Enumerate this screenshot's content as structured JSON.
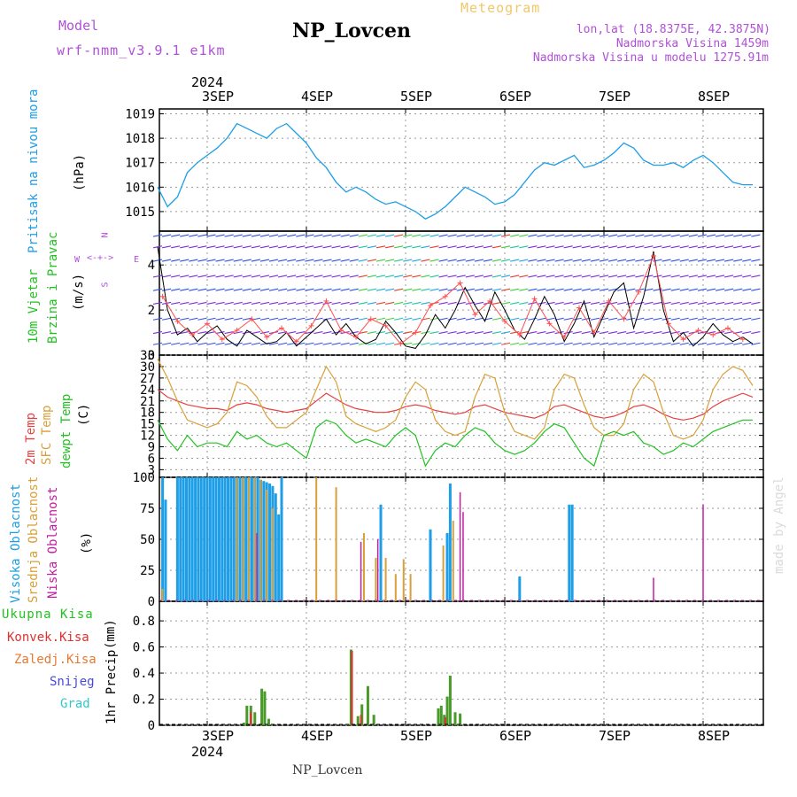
{
  "header": {
    "model_label": "Model",
    "model_name": "wrf-nmm_v3.9.1 e1km",
    "station": "NP_Lovcen",
    "product": "Meteogram",
    "coords": "lon,lat (18.8375E, 42.3875N)",
    "elevation": "Nadmorska Visina 1459m",
    "model_elevation": "Nadmorska Visina u modelu 1275.91m",
    "year": "2024",
    "footer_station": "NP_Lovcen",
    "watermark": "made by Angel"
  },
  "colors": {
    "pressure": "#1e9ee6",
    "wind_speed": "#000000",
    "gust": "#ff5050",
    "t2m": "#e64040",
    "tsfc": "#d8a038",
    "dewpoint": "#22c222",
    "high_cloud": "#1e9ee6",
    "mid_cloud": "#d8a038",
    "low_cloud": "#c21ea0",
    "total_precip": "#4a9a2a",
    "conv_precip": "#e03030",
    "freezing_precip": "#e87830",
    "snow": "#4848e0",
    "hail": "#30c8c8",
    "model_text": "#b050d8"
  },
  "chart_data": [
    {
      "type": "line",
      "name": "pressure",
      "ylabel": "Pritisak na nivou mora",
      "unit": "(hPa)",
      "x_tick_labels": [
        "3SEP",
        "4SEP",
        "5SEP",
        "6SEP",
        "7SEP",
        "8SEP"
      ],
      "x_range_days": [
        0,
        6
      ],
      "ylim": [
        1014.2,
        1019.2
      ],
      "yticks": [
        1015,
        1016,
        1017,
        1018,
        1019
      ],
      "grid": true,
      "x": [
        -0.5,
        -0.4,
        -0.3,
        -0.2,
        -0.1,
        0.0,
        0.1,
        0.2,
        0.3,
        0.4,
        0.5,
        0.6,
        0.7,
        0.8,
        0.9,
        1.0,
        1.1,
        1.2,
        1.3,
        1.4,
        1.5,
        1.6,
        1.7,
        1.8,
        1.9,
        2.0,
        2.1,
        2.2,
        2.3,
        2.4,
        2.5,
        2.6,
        2.7,
        2.8,
        2.9,
        3.0,
        3.1,
        3.2,
        3.3,
        3.4,
        3.5,
        3.6,
        3.7,
        3.8,
        3.9,
        4.0,
        4.1,
        4.2,
        4.3,
        4.4,
        4.5,
        4.6,
        4.7,
        4.8,
        4.9,
        5.0,
        5.1,
        5.2,
        5.3,
        5.4,
        5.5
      ],
      "y": [
        1016.0,
        1015.2,
        1015.6,
        1016.6,
        1017.0,
        1017.3,
        1017.6,
        1018.0,
        1018.6,
        1018.4,
        1018.2,
        1018.0,
        1018.4,
        1018.6,
        1018.2,
        1017.8,
        1017.2,
        1016.8,
        1016.2,
        1015.8,
        1016.0,
        1015.8,
        1015.5,
        1015.3,
        1015.4,
        1015.2,
        1015.0,
        1014.7,
        1014.9,
        1015.2,
        1015.6,
        1016.0,
        1015.8,
        1015.6,
        1015.3,
        1015.4,
        1015.7,
        1016.2,
        1016.7,
        1017.0,
        1016.9,
        1017.1,
        1017.3,
        1016.8,
        1016.9,
        1017.1,
        1017.4,
        1017.8,
        1017.6,
        1017.1,
        1016.9,
        1016.9,
        1017.0,
        1016.8,
        1017.1,
        1017.3,
        1017.0,
        1016.6,
        1016.2,
        1016.1,
        1016.1
      ]
    },
    {
      "type": "line",
      "name": "wind",
      "ylabel": "10m Vjetar Brzina i Pravac",
      "unit": "(m/s)",
      "compass": {
        "north": "N",
        "south": "S",
        "east": "E",
        "west": "W"
      },
      "ylim": [
        0,
        5.5
      ],
      "yticks": [
        0,
        2,
        4
      ],
      "grid": true,
      "series": [
        {
          "name": "speed",
          "x": [
            -0.5,
            -0.4,
            -0.3,
            -0.2,
            -0.1,
            0.0,
            0.1,
            0.2,
            0.3,
            0.4,
            0.5,
            0.6,
            0.7,
            0.8,
            0.9,
            1.0,
            1.1,
            1.2,
            1.3,
            1.4,
            1.5,
            1.6,
            1.7,
            1.8,
            1.9,
            2.0,
            2.1,
            2.2,
            2.3,
            2.4,
            2.5,
            2.6,
            2.7,
            2.8,
            2.9,
            3.0,
            3.1,
            3.2,
            3.3,
            3.4,
            3.5,
            3.6,
            3.7,
            3.8,
            3.9,
            4.0,
            4.1,
            4.2,
            4.3,
            4.4,
            4.5,
            4.6,
            4.7,
            4.8,
            4.9,
            5.0,
            5.1,
            5.2,
            5.3,
            5.4,
            5.5
          ],
          "y": [
            4.8,
            2.0,
            0.9,
            1.2,
            0.6,
            1.0,
            1.3,
            0.7,
            0.4,
            1.1,
            0.8,
            0.5,
            0.6,
            1.0,
            0.4,
            0.8,
            1.2,
            1.6,
            0.9,
            1.4,
            0.8,
            0.5,
            0.7,
            1.5,
            1.0,
            0.4,
            0.3,
            0.9,
            1.8,
            1.2,
            2.0,
            3.0,
            2.2,
            1.5,
            2.8,
            2.0,
            1.1,
            0.7,
            1.6,
            2.6,
            1.8,
            0.6,
            1.4,
            2.4,
            0.8,
            1.8,
            2.8,
            3.2,
            1.2,
            2.6,
            4.6,
            2.0,
            0.6,
            1.0,
            0.4,
            0.8,
            1.4,
            0.9,
            0.6,
            0.8,
            0.5
          ]
        },
        {
          "name": "gust",
          "x": [
            -0.45,
            -0.3,
            -0.15,
            0.0,
            0.15,
            0.3,
            0.45,
            0.6,
            0.75,
            0.9,
            1.05,
            1.2,
            1.35,
            1.5,
            1.65,
            1.8,
            1.95,
            2.1,
            2.25,
            2.4,
            2.55,
            2.7,
            2.85,
            3.0,
            3.15,
            3.3,
            3.45,
            3.6,
            3.75,
            3.9,
            4.05,
            4.2,
            4.35,
            4.5,
            4.65,
            4.8,
            4.95,
            5.1,
            5.25,
            5.4
          ],
          "y": [
            2.6,
            1.5,
            0.9,
            1.4,
            0.7,
            1.1,
            1.6,
            0.8,
            1.2,
            0.6,
            1.3,
            2.4,
            1.1,
            0.8,
            1.6,
            1.3,
            0.5,
            1.0,
            2.2,
            2.6,
            3.2,
            1.8,
            2.4,
            1.5,
            0.9,
            2.5,
            1.4,
            0.8,
            2.1,
            1.0,
            2.4,
            1.6,
            2.8,
            4.4,
            1.4,
            0.7,
            1.1,
            0.9,
            1.2,
            0.7
          ]
        }
      ]
    },
    {
      "type": "line",
      "name": "temperature",
      "ylabels": [
        "2m Temp",
        "SFC Temp",
        "dewpt Temp"
      ],
      "unit": "(C)",
      "ylim": [
        1,
        33
      ],
      "yticks": [
        3,
        6,
        9,
        12,
        15,
        18,
        21,
        24,
        27,
        30,
        33
      ],
      "grid": true,
      "series": [
        {
          "name": "2m Temp",
          "x": [
            -0.5,
            -0.4,
            -0.3,
            -0.2,
            -0.1,
            0.0,
            0.1,
            0.2,
            0.3,
            0.4,
            0.5,
            0.6,
            0.7,
            0.8,
            0.9,
            1.0,
            1.1,
            1.2,
            1.3,
            1.4,
            1.5,
            1.6,
            1.7,
            1.8,
            1.9,
            2.0,
            2.1,
            2.2,
            2.3,
            2.4,
            2.5,
            2.6,
            2.7,
            2.8,
            2.9,
            3.0,
            3.1,
            3.2,
            3.3,
            3.4,
            3.5,
            3.6,
            3.7,
            3.8,
            3.9,
            4.0,
            4.1,
            4.2,
            4.3,
            4.4,
            4.5,
            4.6,
            4.7,
            4.8,
            4.9,
            5.0,
            5.1,
            5.2,
            5.3,
            5.4,
            5.5
          ],
          "y": [
            24.0,
            22.0,
            21.0,
            20.0,
            19.5,
            19.0,
            19.0,
            18.5,
            20.0,
            20.5,
            20.0,
            19.0,
            18.5,
            18.0,
            18.5,
            19.0,
            21.0,
            23.0,
            21.5,
            20.0,
            19.0,
            18.5,
            18.0,
            18.0,
            18.5,
            19.5,
            20.0,
            19.5,
            18.5,
            18.0,
            17.5,
            18.0,
            19.5,
            20.0,
            19.0,
            18.0,
            17.5,
            17.0,
            16.5,
            17.5,
            19.5,
            20.0,
            19.0,
            18.0,
            17.0,
            16.5,
            17.0,
            18.0,
            19.5,
            20.0,
            19.0,
            17.5,
            16.5,
            16.0,
            16.5,
            17.5,
            19.5,
            21.0,
            22.0,
            23.0,
            22.0
          ]
        },
        {
          "name": "SFC Temp",
          "x": [
            -0.5,
            -0.4,
            -0.3,
            -0.2,
            -0.1,
            0.0,
            0.1,
            0.2,
            0.3,
            0.4,
            0.5,
            0.6,
            0.7,
            0.8,
            0.9,
            1.0,
            1.1,
            1.2,
            1.3,
            1.4,
            1.5,
            1.6,
            1.7,
            1.8,
            1.9,
            2.0,
            2.1,
            2.2,
            2.3,
            2.4,
            2.5,
            2.6,
            2.7,
            2.8,
            2.9,
            3.0,
            3.1,
            3.2,
            3.3,
            3.4,
            3.5,
            3.6,
            3.7,
            3.8,
            3.9,
            4.0,
            4.1,
            4.2,
            4.3,
            4.4,
            4.5,
            4.6,
            4.7,
            4.8,
            4.9,
            5.0,
            5.1,
            5.2,
            5.3,
            5.4,
            5.5
          ],
          "y": [
            32.0,
            27.0,
            21.0,
            16.0,
            15.0,
            14.0,
            15.0,
            18.0,
            26.0,
            25.0,
            22.0,
            17.0,
            14.0,
            14.0,
            16.0,
            18.0,
            24.0,
            30.0,
            26.0,
            17.0,
            15.0,
            14.0,
            13.0,
            14.0,
            16.0,
            22.0,
            26.0,
            24.0,
            16.0,
            13.0,
            12.0,
            13.0,
            22.0,
            28.0,
            27.0,
            18.0,
            13.0,
            12.0,
            11.0,
            14.0,
            24.0,
            28.0,
            27.0,
            20.0,
            14.0,
            12.0,
            12.0,
            15.0,
            24.0,
            28.0,
            26.0,
            18.0,
            12.0,
            11.0,
            12.0,
            16.0,
            24.0,
            28.0,
            30.0,
            29.0,
            25.0
          ]
        },
        {
          "name": "dewpt Temp",
          "x": [
            -0.5,
            -0.4,
            -0.3,
            -0.2,
            -0.1,
            0.0,
            0.1,
            0.2,
            0.3,
            0.4,
            0.5,
            0.6,
            0.7,
            0.8,
            0.9,
            1.0,
            1.1,
            1.2,
            1.3,
            1.4,
            1.5,
            1.6,
            1.7,
            1.8,
            1.9,
            2.0,
            2.1,
            2.2,
            2.3,
            2.4,
            2.5,
            2.6,
            2.7,
            2.8,
            2.9,
            3.0,
            3.1,
            3.2,
            3.3,
            3.4,
            3.5,
            3.6,
            3.7,
            3.8,
            3.9,
            4.0,
            4.1,
            4.2,
            4.3,
            4.4,
            4.5,
            4.6,
            4.7,
            4.8,
            4.9,
            5.0,
            5.1,
            5.2,
            5.3,
            5.4,
            5.5
          ],
          "y": [
            16.0,
            11.0,
            8.0,
            12.0,
            9.0,
            10.0,
            10.0,
            9.0,
            13.0,
            11.0,
            12.0,
            10.0,
            9.0,
            10.0,
            8.0,
            6.0,
            14.0,
            16.0,
            15.0,
            12.0,
            10.0,
            11.0,
            10.0,
            9.0,
            12.0,
            14.0,
            12.0,
            4.0,
            8.0,
            10.0,
            9.0,
            12.0,
            14.0,
            13.0,
            10.0,
            8.0,
            7.0,
            8.0,
            10.0,
            13.0,
            15.0,
            14.0,
            10.0,
            6.0,
            4.0,
            12.0,
            13.0,
            12.0,
            13.0,
            10.0,
            9.0,
            7.0,
            8.0,
            10.0,
            9.0,
            11.0,
            13.0,
            14.0,
            15.0,
            16.0,
            16.0
          ]
        }
      ]
    },
    {
      "type": "bar",
      "name": "cloud",
      "ylabels": [
        "Visoka Oblacnost",
        "Srednja Oblacnost",
        "Niska Oblacnost"
      ],
      "unit": "(%)",
      "ylim": [
        0,
        100
      ],
      "yticks": [
        0,
        25,
        50,
        75,
        100
      ],
      "grid": true,
      "series": [
        {
          "name": "Visoka Oblacnost",
          "x": [
            -0.45,
            -0.42,
            -0.3,
            -0.27,
            -0.24,
            -0.21,
            -0.18,
            -0.15,
            -0.12,
            -0.09,
            -0.06,
            -0.03,
            0.0,
            0.03,
            0.06,
            0.09,
            0.12,
            0.15,
            0.18,
            0.21,
            0.24,
            0.27,
            0.3,
            0.33,
            0.36,
            0.39,
            0.42,
            0.45,
            0.48,
            0.51,
            0.54,
            0.57,
            0.6,
            0.63,
            0.66,
            0.69,
            0.72,
            0.75,
            1.75,
            2.25,
            2.42,
            2.45,
            3.15,
            3.65,
            3.68
          ],
          "y": [
            100,
            82,
            100,
            100,
            100,
            100,
            100,
            100,
            100,
            100,
            100,
            100,
            100,
            100,
            100,
            100,
            100,
            100,
            100,
            100,
            100,
            100,
            100,
            100,
            100,
            100,
            100,
            100,
            100,
            100,
            98,
            97,
            96,
            95,
            93,
            87,
            70,
            100,
            78,
            58,
            55,
            95,
            20,
            78,
            78
          ]
        },
        {
          "name": "Srednja Oblacnost",
          "x": [
            -0.45,
            0.3,
            0.36,
            0.42,
            0.48,
            0.54,
            0.6,
            0.66,
            1.1,
            1.3,
            1.58,
            1.7,
            1.8,
            1.9,
            1.98,
            2.05,
            2.38,
            2.48
          ],
          "y": [
            10,
            100,
            100,
            100,
            100,
            98,
            90,
            75,
            100,
            92,
            55,
            35,
            35,
            22,
            34,
            22,
            45,
            65
          ]
        },
        {
          "name": "Niska Oblacnost",
          "x": [
            0.5,
            1.55,
            1.72,
            2.55,
            2.58,
            4.5,
            5.0
          ],
          "y": [
            55,
            48,
            50,
            88,
            72,
            19,
            78
          ]
        }
      ]
    },
    {
      "type": "bar",
      "name": "precip",
      "ylabels": [
        "Ukupna Kisa",
        "Konvek.Kisa",
        "Zaledj.Kisa",
        "Snijeg",
        "Grad"
      ],
      "axis_label": "1hr Precip",
      "unit": "(mm)",
      "ylim": [
        0,
        0.95
      ],
      "yticks": [
        0,
        0.2,
        0.4,
        0.6,
        0.8
      ],
      "grid": true,
      "series": [
        {
          "name": "Ukupna Kisa",
          "x": [
            0.37,
            0.4,
            0.44,
            0.48,
            0.55,
            0.58,
            0.62,
            1.42,
            1.45,
            1.52,
            1.56,
            1.62,
            1.68,
            2.33,
            2.36,
            2.39,
            2.42,
            2.45,
            2.5,
            2.55
          ],
          "y": [
            0.02,
            0.15,
            0.15,
            0.1,
            0.28,
            0.26,
            0.05,
            0.01,
            0.58,
            0.07,
            0.16,
            0.3,
            0.08,
            0.13,
            0.15,
            0.08,
            0.22,
            0.38,
            0.1,
            0.09
          ]
        },
        {
          "name": "Konvek.Kisa",
          "x": [
            0.44,
            1.46,
            1.55,
            2.4
          ],
          "y": [
            0.1,
            0.57,
            0.08,
            0.06
          ]
        }
      ]
    }
  ]
}
